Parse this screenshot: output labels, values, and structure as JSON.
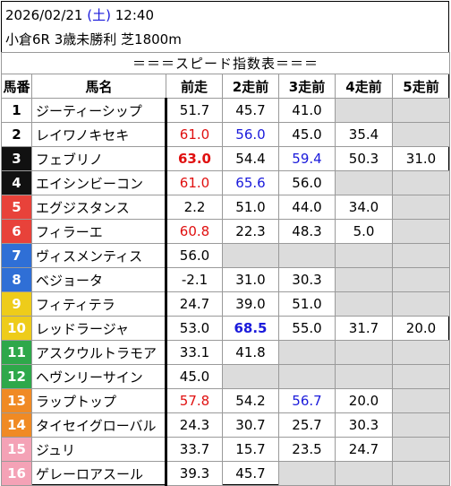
{
  "header": {
    "date": "2026/02/21",
    "dow_open": "(",
    "dow": "土",
    "dow_close": ")",
    "time": "12:40",
    "race": "小倉6R 3歳未勝利 芝1800m"
  },
  "table_title": "＝＝＝スピード指数表＝＝＝",
  "columns": [
    "馬番",
    "馬名",
    "前走",
    "2走前",
    "3走前",
    "4走前",
    "5走前"
  ],
  "colors": {
    "num_bg": [
      "#ffffff",
      "#ffffff",
      "#111111",
      "#111111",
      "#e8423a",
      "#e8423a",
      "#2f6fd6",
      "#2f6fd6",
      "#eecc1a",
      "#eecc1a",
      "#2ea84a",
      "#2ea84a",
      "#f08a24",
      "#f08a24",
      "#f4a2b6",
      "#f4a2b6"
    ],
    "num_fg": [
      "#000000",
      "#000000",
      "#ffffff",
      "#ffffff",
      "#ffffff",
      "#ffffff",
      "#ffffff",
      "#ffffff",
      "#ffffff",
      "#ffffff",
      "#ffffff",
      "#ffffff",
      "#ffffff",
      "#ffffff",
      "#ffffff",
      "#ffffff"
    ],
    "red": "#e01010",
    "blue": "#1a1adb",
    "empty": "#dcdcdc"
  },
  "rows": [
    {
      "num": "1",
      "name": "ジーティーシップ",
      "v": [
        "51.7",
        "45.7",
        "41.0",
        "",
        ""
      ],
      "style": [
        "",
        "",
        "",
        "",
        ""
      ]
    },
    {
      "num": "2",
      "name": "レイワノキセキ",
      "v": [
        "61.0",
        "56.0",
        "45.0",
        "35.4",
        ""
      ],
      "style": [
        "red",
        "blue",
        "",
        "",
        ""
      ]
    },
    {
      "num": "3",
      "name": "フェブリノ",
      "v": [
        "63.0",
        "54.4",
        "59.4",
        "50.3",
        "31.0"
      ],
      "style": [
        "redbold",
        "",
        "blue",
        "",
        ""
      ]
    },
    {
      "num": "4",
      "name": "エイシンビーコン",
      "v": [
        "61.0",
        "65.6",
        "56.0",
        "",
        ""
      ],
      "style": [
        "red",
        "blue",
        "",
        "",
        ""
      ]
    },
    {
      "num": "5",
      "name": "エグジスタンス",
      "v": [
        "2.2",
        "51.0",
        "44.0",
        "34.0",
        ""
      ],
      "style": [
        "",
        "",
        "",
        "",
        ""
      ]
    },
    {
      "num": "6",
      "name": "フィラーエ",
      "v": [
        "60.8",
        "22.3",
        "48.3",
        "5.0",
        ""
      ],
      "style": [
        "red",
        "",
        "",
        "",
        ""
      ]
    },
    {
      "num": "7",
      "name": "ヴィスメンティス",
      "v": [
        "56.0",
        "",
        "",
        "",
        ""
      ],
      "style": [
        "",
        "",
        "",
        "",
        ""
      ]
    },
    {
      "num": "8",
      "name": "ベジョータ",
      "v": [
        "-2.1",
        "31.0",
        "30.3",
        "",
        ""
      ],
      "style": [
        "",
        "",
        "",
        "",
        ""
      ]
    },
    {
      "num": "9",
      "name": "フィティテラ",
      "v": [
        "24.7",
        "39.0",
        "51.0",
        "",
        ""
      ],
      "style": [
        "",
        "",
        "",
        "",
        ""
      ]
    },
    {
      "num": "10",
      "name": "レッドラージャ",
      "v": [
        "53.0",
        "68.5",
        "55.0",
        "31.7",
        "20.0"
      ],
      "style": [
        "",
        "bluebold",
        "",
        "",
        ""
      ]
    },
    {
      "num": "11",
      "name": "アスクウルトラモア",
      "v": [
        "33.1",
        "41.8",
        "",
        "",
        ""
      ],
      "style": [
        "",
        "",
        "",
        "",
        ""
      ]
    },
    {
      "num": "12",
      "name": "ヘヴンリーサイン",
      "v": [
        "45.0",
        "",
        "",
        "",
        ""
      ],
      "style": [
        "",
        "",
        "",
        "",
        ""
      ]
    },
    {
      "num": "13",
      "name": "ラップトップ",
      "v": [
        "57.8",
        "54.2",
        "56.7",
        "20.0",
        ""
      ],
      "style": [
        "red",
        "",
        "blue",
        "",
        ""
      ]
    },
    {
      "num": "14",
      "name": "タイセイグローバル",
      "v": [
        "24.3",
        "30.7",
        "25.7",
        "30.3",
        ""
      ],
      "style": [
        "",
        "",
        "",
        "",
        ""
      ]
    },
    {
      "num": "15",
      "name": "ジュリ",
      "v": [
        "33.7",
        "15.7",
        "23.5",
        "24.7",
        ""
      ],
      "style": [
        "",
        "",
        "",
        "",
        ""
      ]
    },
    {
      "num": "16",
      "name": "ゲレーロアスール",
      "v": [
        "39.3",
        "45.7",
        "",
        "",
        ""
      ],
      "style": [
        "",
        "",
        "",
        "",
        ""
      ]
    }
  ]
}
